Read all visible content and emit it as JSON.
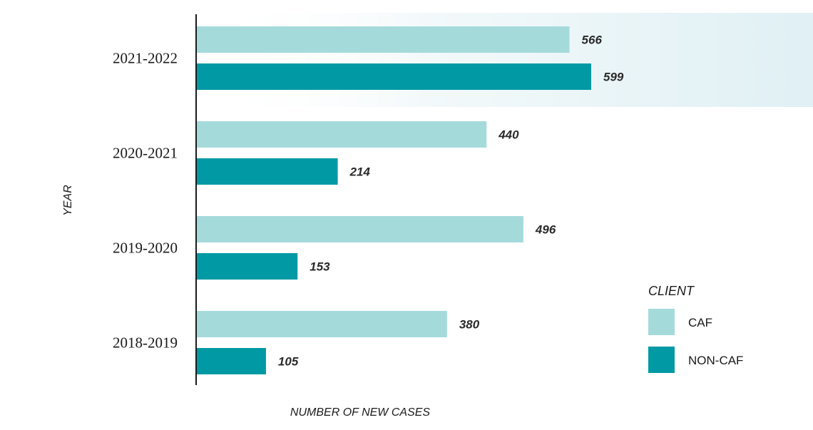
{
  "chart_data": {
    "type": "bar",
    "orientation": "horizontal",
    "categories": [
      "2021-2022",
      "2020-2021",
      "2019-2020",
      "2018-2019"
    ],
    "series": [
      {
        "name": "CAF",
        "values": [
          566,
          440,
          496,
          380
        ],
        "color": "#a5dadb"
      },
      {
        "name": "NON-CAF",
        "values": [
          599,
          214,
          153,
          105
        ],
        "color": "#0099a4"
      }
    ],
    "data_labels": {
      "CAF": [
        "566",
        "440",
        "496",
        "380"
      ],
      "NON-CAF": [
        "599",
        "214",
        "153",
        "105"
      ]
    },
    "xlabel": "NUMBER OF NEW CASES",
    "ylabel": "YEAR",
    "xlim": [
      0,
      599
    ],
    "legend": {
      "title": "CLIENT",
      "position": "bottom-right"
    },
    "grid": false,
    "highlight_category": "2021-2022",
    "highlight_color": "#e0f0f4"
  }
}
